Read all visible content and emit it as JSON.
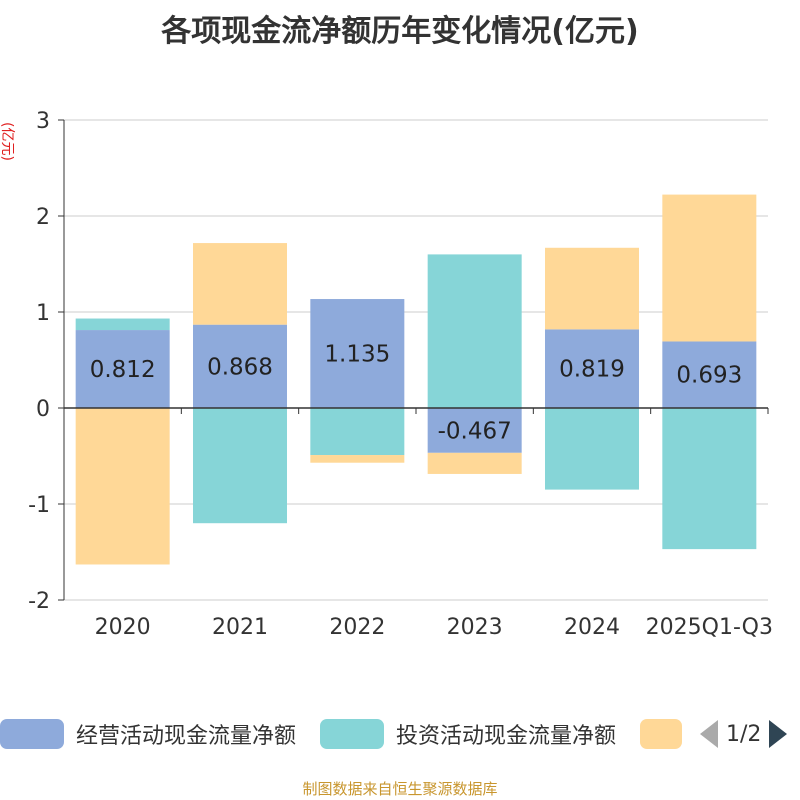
{
  "chart_data": {
    "type": "bar",
    "stacked": true,
    "title": "各项现金流净额历年变化情况(亿元)",
    "ylabel": "(亿元)",
    "xlabel": "",
    "categories": [
      "2020",
      "2021",
      "2022",
      "2023",
      "2024",
      "2025Q1-Q3"
    ],
    "ylim": [
      -2,
      3
    ],
    "yticks": [
      "3",
      "2",
      "1",
      "0",
      "-1",
      "-2"
    ],
    "grid": true,
    "series": [
      {
        "name": "经营活动现金流量净额",
        "color": "#8eaadb",
        "values": [
          0.812,
          0.868,
          1.135,
          -0.467,
          0.819,
          0.693
        ],
        "labels": [
          "0.812",
          "0.868",
          "1.135",
          "-0.467",
          "0.819",
          "0.693"
        ]
      },
      {
        "name": "投资活动现金流量净额",
        "color": "#86d5d7",
        "values": [
          0.12,
          -1.2,
          -0.49,
          1.6,
          -0.85,
          -1.47
        ]
      },
      {
        "name": "",
        "color": "#ffd897",
        "values": [
          -1.63,
          0.85,
          -0.08,
          -0.22,
          0.85,
          1.53
        ]
      }
    ],
    "legend_position": "bottom"
  },
  "legend": {
    "items": [
      {
        "label": "经营活动现金流量净额",
        "color": "#8eaadb"
      },
      {
        "label": "投资活动现金流量净额",
        "color": "#86d5d7"
      },
      {
        "label": "",
        "color": "#ffd897"
      }
    ],
    "page": "1/2"
  },
  "source": "制图数据来自恒生聚源数据库"
}
